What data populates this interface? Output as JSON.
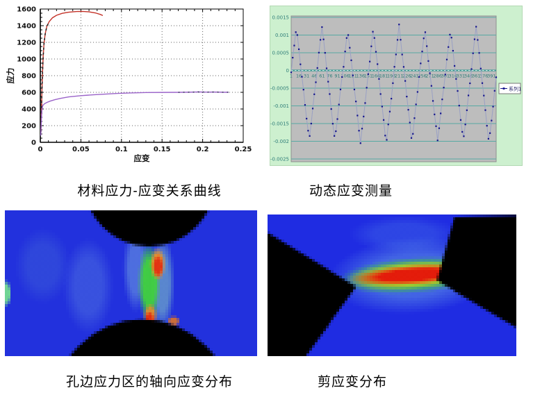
{
  "page": {
    "background": "#ffffff"
  },
  "captions": {
    "tl": "材料应力-应变关系曲线",
    "tr": "动态应变测量",
    "bl": "孔边应力区的轴向应变分布",
    "br": "剪应变分布"
  },
  "chart_data": [
    {
      "id": "stress_strain",
      "type": "line",
      "title": "",
      "xlabel": "应变",
      "ylabel": "应力",
      "xlim": [
        0,
        0.25
      ],
      "ylim": [
        0,
        1600
      ],
      "xticks": [
        0,
        0.05,
        0.1,
        0.15,
        0.2,
        0.25
      ],
      "xtick_labels": [
        "0",
        "0.05",
        "0.1",
        "0.15",
        "0.2",
        "0.25"
      ],
      "yticks": [
        0,
        200,
        400,
        600,
        800,
        1000,
        1200,
        1400,
        1600
      ],
      "x_minor_step": 0.01,
      "y_minor_step": 50,
      "grid": "dotted",
      "grid_color": "#606060",
      "axis_color": "#000000",
      "label_color": "#111111",
      "series": [
        {
          "name": "upper-curve-red",
          "color": "#c43127",
          "overlay_dash_color": "#1a1a1a",
          "overlay_below": 1460,
          "points": [
            [
              0.0008,
              120
            ],
            [
              0.0015,
              420
            ],
            [
              0.002,
              620
            ],
            [
              0.0028,
              850
            ],
            [
              0.0035,
              1020
            ],
            [
              0.0045,
              1180
            ],
            [
              0.006,
              1300
            ],
            [
              0.008,
              1390
            ],
            [
              0.011,
              1450
            ],
            [
              0.015,
              1495
            ],
            [
              0.02,
              1525
            ],
            [
              0.027,
              1548
            ],
            [
              0.035,
              1562
            ],
            [
              0.045,
              1570
            ],
            [
              0.052,
              1571
            ],
            [
              0.06,
              1566
            ],
            [
              0.068,
              1553
            ],
            [
              0.074,
              1535
            ],
            [
              0.077,
              1522
            ]
          ]
        },
        {
          "name": "lower-curve-purple",
          "color": "#9a63c9",
          "overlay_dash_color": "#26264a",
          "overlay_from_x": 0.165,
          "points": [
            [
              0.0005,
              80
            ],
            [
              0.001,
              200
            ],
            [
              0.0015,
              300
            ],
            [
              0.002,
              390
            ],
            [
              0.003,
              440
            ],
            [
              0.005,
              462
            ],
            [
              0.008,
              478
            ],
            [
              0.012,
              494
            ],
            [
              0.018,
              512
            ],
            [
              0.025,
              528
            ],
            [
              0.035,
              545
            ],
            [
              0.05,
              560
            ],
            [
              0.065,
              570
            ],
            [
              0.08,
              579
            ],
            [
              0.095,
              587
            ],
            [
              0.11,
              592
            ],
            [
              0.13,
              597
            ],
            [
              0.15,
              599
            ],
            [
              0.17,
              600
            ],
            [
              0.185,
              602
            ],
            [
              0.195,
              605
            ],
            [
              0.205,
              603
            ],
            [
              0.215,
              604
            ],
            [
              0.225,
              601
            ],
            [
              0.232,
              601
            ]
          ]
        }
      ]
    },
    {
      "id": "dynamic_strain",
      "type": "line",
      "legend": [
        "系列1"
      ],
      "panel_bg": "#cdf0cf",
      "plot_bg": "#bdbdbd",
      "plot_border": "#8f8f8f",
      "grid_color": "#57a9a3",
      "zero_line_color": "#3f9a94",
      "zero_dash_color": "#cdeeea",
      "tick_label_color": "#2e7d78",
      "line_color": "#9aa0c4",
      "marker_color": "#14148c",
      "legend_text_color": "#24246a",
      "ylim": [
        -0.0025,
        0.0015
      ],
      "yticks": [
        0.0015,
        0.001,
        0.0005,
        0,
        -0.0005,
        -0.001,
        -0.0015,
        -0.002,
        -0.0025
      ],
      "ytick_labels": [
        "0.0015",
        "0.001",
        "0.0005",
        "0",
        "-0.0005",
        "-0.001",
        "-0.0015",
        "-0.002",
        "-0.0025"
      ],
      "xtick_labels": [
        "1",
        "16",
        "31",
        "46",
        "61",
        "76",
        "91",
        "106",
        "121",
        "136",
        "151",
        "166",
        "181",
        "196",
        "211",
        "226",
        "241",
        "256",
        "271",
        "286",
        "301",
        "316",
        "331",
        "346",
        "361",
        "376",
        "391"
      ],
      "xtick_step": 15,
      "series_generator": {
        "name": "系列1",
        "n_points": 400,
        "marker_step": 3,
        "period": 50,
        "peak": 0.00121,
        "trough": -0.00203,
        "peak_phase": 0.2,
        "trough_phase": 0.7,
        "peak_wobble": 6e-05,
        "trough_wobble": 5e-05,
        "noise": 3e-05
      }
    },
    {
      "id": "axial_strain_heatmap",
      "type": "heatmap",
      "base_color": "#2231dd",
      "regions": [
        {
          "shape": "radial",
          "x": 0.15,
          "y": 0.38,
          "rx": 0.11,
          "ry": 0.26,
          "color": "rgba(70,110,215,0.35)"
        },
        {
          "shape": "radial",
          "x": 0.33,
          "y": 0.52,
          "rx": 0.1,
          "ry": 0.33,
          "color": "rgba(90,130,225,0.40)"
        },
        {
          "shape": "radial",
          "x": 0.52,
          "y": 0.4,
          "rx": 0.055,
          "ry": 0.3,
          "color": "rgba(120,170,225,0.50)"
        },
        {
          "shape": "radial",
          "x": 0.625,
          "y": 0.5,
          "rx": 0.05,
          "ry": 0.34,
          "color": "rgba(135,205,195,0.55)"
        },
        {
          "shape": "radial",
          "x": 0.573,
          "y": 0.5,
          "rx": 0.045,
          "ry": 0.28,
          "color": "rgba(65,210,60,0.95)"
        },
        {
          "shape": "radial",
          "x": 0.607,
          "y": 0.37,
          "rx": 0.032,
          "ry": 0.115,
          "color": "rgba(235,150,40,0.95)"
        },
        {
          "shape": "radial",
          "x": 0.608,
          "y": 0.385,
          "rx": 0.023,
          "ry": 0.082,
          "color": "rgba(226,48,18,0.97)"
        },
        {
          "shape": "radial",
          "x": 0.578,
          "y": 0.72,
          "rx": 0.027,
          "ry": 0.085,
          "color": "rgba(235,140,40,0.90)"
        },
        {
          "shape": "radial",
          "x": 0.575,
          "y": 0.745,
          "rx": 0.019,
          "ry": 0.058,
          "color": "rgba(226,45,18,0.97)"
        },
        {
          "shape": "radial",
          "x": 0.67,
          "y": 0.76,
          "rx": 0.026,
          "ry": 0.04,
          "color": "rgba(232,120,30,0.85)"
        },
        {
          "shape": "radial",
          "x": 0.006,
          "y": 0.57,
          "rx": 0.02,
          "ry": 0.095,
          "color": "rgba(120,230,140,0.90)"
        },
        {
          "shape": "circle",
          "x": 0.573,
          "y": -0.207,
          "r": 0.263,
          "color": "#000000"
        },
        {
          "shape": "circle",
          "x": 0.545,
          "y": 1.369,
          "r": 0.3595,
          "color": "#000000"
        }
      ]
    },
    {
      "id": "shear_strain_heatmap",
      "type": "heatmap",
      "base_color": "#1f2ce2",
      "regions": [
        {
          "shape": "radial",
          "x": 0.55,
          "y": 0.14,
          "rx": 0.22,
          "ry": 0.13,
          "color": "rgba(60,95,230,0.50)"
        },
        {
          "shape": "radial",
          "x": 0.585,
          "y": 0.43,
          "rx": 0.34,
          "ry": 0.27,
          "rot": -4,
          "color": "rgba(95,145,230,0.55)"
        },
        {
          "shape": "radial",
          "x": 0.585,
          "y": 0.43,
          "rx": 0.3,
          "ry": 0.128,
          "rot": -4,
          "color": "rgba(60,205,55,0.95)"
        },
        {
          "shape": "radial",
          "x": 0.585,
          "y": 0.428,
          "rx": 0.27,
          "ry": 0.098,
          "rot": -4,
          "color": "rgba(225,205,40,0.92)"
        },
        {
          "shape": "radial",
          "x": 0.585,
          "y": 0.427,
          "rx": 0.25,
          "ry": 0.07,
          "rot": -4,
          "color": "rgba(228,24,10,0.98)"
        },
        {
          "shape": "polygon",
          "color": "#000000",
          "points": [
            [
              0,
              0.127
            ],
            [
              0.357,
              0.51
            ],
            [
              0.154,
              1
            ],
            [
              0,
              1
            ]
          ]
        },
        {
          "shape": "polygon",
          "color": "#000000",
          "points": [
            [
              0.75,
              0.02
            ],
            [
              1,
              0.005
            ],
            [
              1,
              0.8
            ],
            [
              0.68,
              0.466
            ]
          ]
        }
      ]
    }
  ]
}
